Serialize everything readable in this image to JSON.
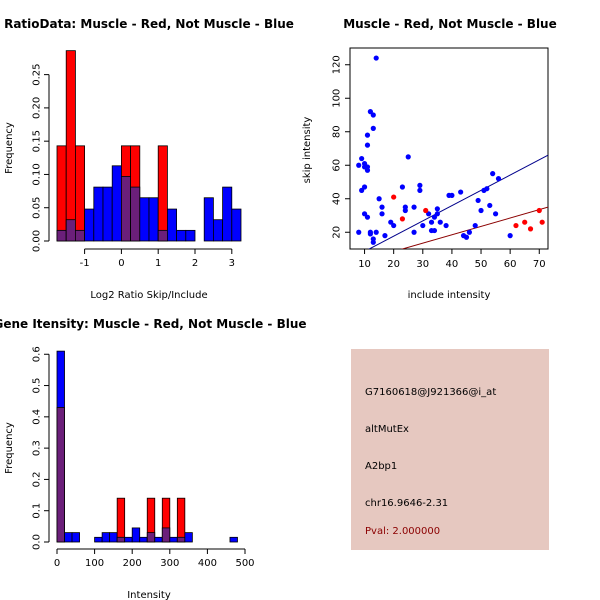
{
  "chart_data": [
    {
      "type": "histogram",
      "title": "RatioData: Muscle - Red, Not Muscle - Blue",
      "xlabel": "Log2 Ratio Skip/Include",
      "ylabel": "Frequency",
      "xlim": [
        -1.75,
        3.25
      ],
      "ylim": [
        0,
        0.29
      ],
      "x_ticks": [
        -1,
        0,
        1,
        2,
        3
      ],
      "y_ticks": [
        0.0,
        0.05,
        0.1,
        0.15,
        0.2,
        0.25
      ],
      "y_tick_labels": [
        "0.00",
        "0.05",
        "0.10",
        "0.15",
        "0.20",
        "0.25"
      ],
      "bin_edges": [
        -1.75,
        -1.5,
        -1.25,
        -1.0,
        -0.75,
        -0.5,
        -0.25,
        0.0,
        0.25,
        0.5,
        0.75,
        1.0,
        1.25,
        1.5,
        1.75,
        2.0,
        2.25,
        2.5,
        2.75,
        3.0,
        3.25
      ],
      "series": [
        {
          "name": "Not Muscle",
          "color": "#0000ff",
          "values": [
            0.016,
            0.032,
            0.016,
            0.048,
            0.081,
            0.081,
            0.113,
            0.097,
            0.081,
            0.065,
            0.065,
            0.016,
            0.048,
            0.016,
            0.016,
            0.0,
            0.065,
            0.032,
            0.081,
            0.048
          ]
        },
        {
          "name": "Muscle",
          "color": "#ff0000",
          "values": [
            0.143,
            0.286,
            0.143,
            0.0,
            0.0,
            0.0,
            0.0,
            0.143,
            0.143,
            0.0,
            0.0,
            0.143,
            0.0,
            0.0,
            0.0,
            0.0,
            0.0,
            0.0,
            0.0,
            0.0
          ]
        }
      ]
    },
    {
      "type": "scatter",
      "title": "Muscle - Red, Not Muscle - Blue",
      "xlabel": "include intensity",
      "ylabel": "skip intensity",
      "xlim": [
        5,
        73
      ],
      "ylim": [
        10,
        130
      ],
      "x_ticks": [
        10,
        20,
        30,
        40,
        50,
        60,
        70
      ],
      "y_ticks": [
        20,
        40,
        60,
        80,
        100,
        120
      ],
      "series": [
        {
          "name": "Not Muscle",
          "color": "#0000ff",
          "points": [
            [
              8,
              20
            ],
            [
              8,
              60
            ],
            [
              9,
              64
            ],
            [
              9,
              45
            ],
            [
              10,
              47
            ],
            [
              10,
              61
            ],
            [
              10,
              59
            ],
            [
              10,
              31
            ],
            [
              11,
              57
            ],
            [
              11,
              59
            ],
            [
              11,
              29
            ],
            [
              11,
              72
            ],
            [
              11,
              78
            ],
            [
              12,
              92
            ],
            [
              12,
              20
            ],
            [
              12,
              19
            ],
            [
              13,
              14
            ],
            [
              13,
              16
            ],
            [
              13,
              90
            ],
            [
              13,
              82
            ],
            [
              14,
              124
            ],
            [
              14,
              20
            ],
            [
              15,
              40
            ],
            [
              16,
              35
            ],
            [
              16,
              31
            ],
            [
              17,
              18
            ],
            [
              19,
              26
            ],
            [
              20,
              24
            ],
            [
              23,
              47
            ],
            [
              24,
              35
            ],
            [
              24,
              33
            ],
            [
              25,
              65
            ],
            [
              27,
              35
            ],
            [
              27,
              20
            ],
            [
              29,
              48
            ],
            [
              29,
              45
            ],
            [
              30,
              24
            ],
            [
              32,
              31
            ],
            [
              33,
              21
            ],
            [
              33,
              26
            ],
            [
              34,
              29
            ],
            [
              34,
              21
            ],
            [
              35,
              31
            ],
            [
              35,
              34
            ],
            [
              36,
              26
            ],
            [
              38,
              24
            ],
            [
              39,
              42
            ],
            [
              40,
              42
            ],
            [
              43,
              44
            ],
            [
              44,
              18
            ],
            [
              45,
              17
            ],
            [
              46,
              20
            ],
            [
              48,
              24
            ],
            [
              49,
              39
            ],
            [
              50,
              33
            ],
            [
              51,
              45
            ],
            [
              52,
              46
            ],
            [
              53,
              36
            ],
            [
              54,
              55
            ],
            [
              55,
              31
            ],
            [
              56,
              52
            ],
            [
              60,
              18
            ]
          ]
        },
        {
          "name": "Muscle",
          "color": "#ff0000",
          "points": [
            [
              20,
              41
            ],
            [
              23,
              28
            ],
            [
              31,
              33
            ],
            [
              62,
              24
            ],
            [
              65,
              26
            ],
            [
              67,
              22
            ],
            [
              70,
              33
            ],
            [
              71,
              26
            ]
          ]
        }
      ],
      "fit_lines": [
        {
          "color": "#00008b",
          "from": [
            5,
            4
          ],
          "to": [
            73,
            66
          ]
        },
        {
          "color": "#8b0000",
          "from": [
            5,
            1
          ],
          "to": [
            73,
            35
          ]
        }
      ]
    },
    {
      "type": "histogram",
      "title": "Gene Itensity: Muscle - Red, Not Muscle - Blue",
      "xlabel": "Intensity",
      "ylabel": "Frequency",
      "xlim": [
        0,
        500
      ],
      "ylim": [
        0,
        0.62
      ],
      "x_ticks": [
        0,
        100,
        200,
        300,
        400,
        500
      ],
      "y_ticks": [
        0.0,
        0.1,
        0.2,
        0.3,
        0.4,
        0.5,
        0.6
      ],
      "y_tick_labels": [
        "0.0",
        "0.1",
        "0.2",
        "0.3",
        "0.4",
        "0.5",
        "0.6"
      ],
      "bin_edges": [
        0,
        20,
        40,
        60,
        80,
        100,
        120,
        140,
        160,
        180,
        200,
        220,
        240,
        260,
        280,
        300,
        320,
        340,
        360,
        380,
        400,
        420,
        440,
        460,
        480,
        500
      ],
      "series": [
        {
          "name": "Not Muscle",
          "color": "#0000ff",
          "values": [
            0.61,
            0.03,
            0.03,
            0.0,
            0.0,
            0.015,
            0.03,
            0.03,
            0.015,
            0.015,
            0.045,
            0.015,
            0.03,
            0.015,
            0.045,
            0.015,
            0.015,
            0.03,
            0.0,
            0.0,
            0.0,
            0.0,
            0.0,
            0.015,
            0.0
          ]
        },
        {
          "name": "Muscle",
          "color": "#ff0000",
          "values": [
            0.43,
            0.0,
            0.0,
            0.0,
            0.0,
            0.0,
            0.0,
            0.0,
            0.14,
            0.0,
            0.0,
            0.0,
            0.14,
            0.0,
            0.14,
            0.0,
            0.14,
            0.0,
            0.0,
            0.0,
            0.0,
            0.0,
            0.0,
            0.0,
            0.0
          ]
        }
      ]
    }
  ],
  "info": {
    "probe_id": "G7160618@J921366@i_at",
    "event_type": "altMutEx",
    "gene": "A2bp1",
    "location": "chr16.9646-2.31",
    "pval": "Pval: 2.000000",
    "background": "#e6c8c0",
    "pval_color": "#8b0000"
  }
}
